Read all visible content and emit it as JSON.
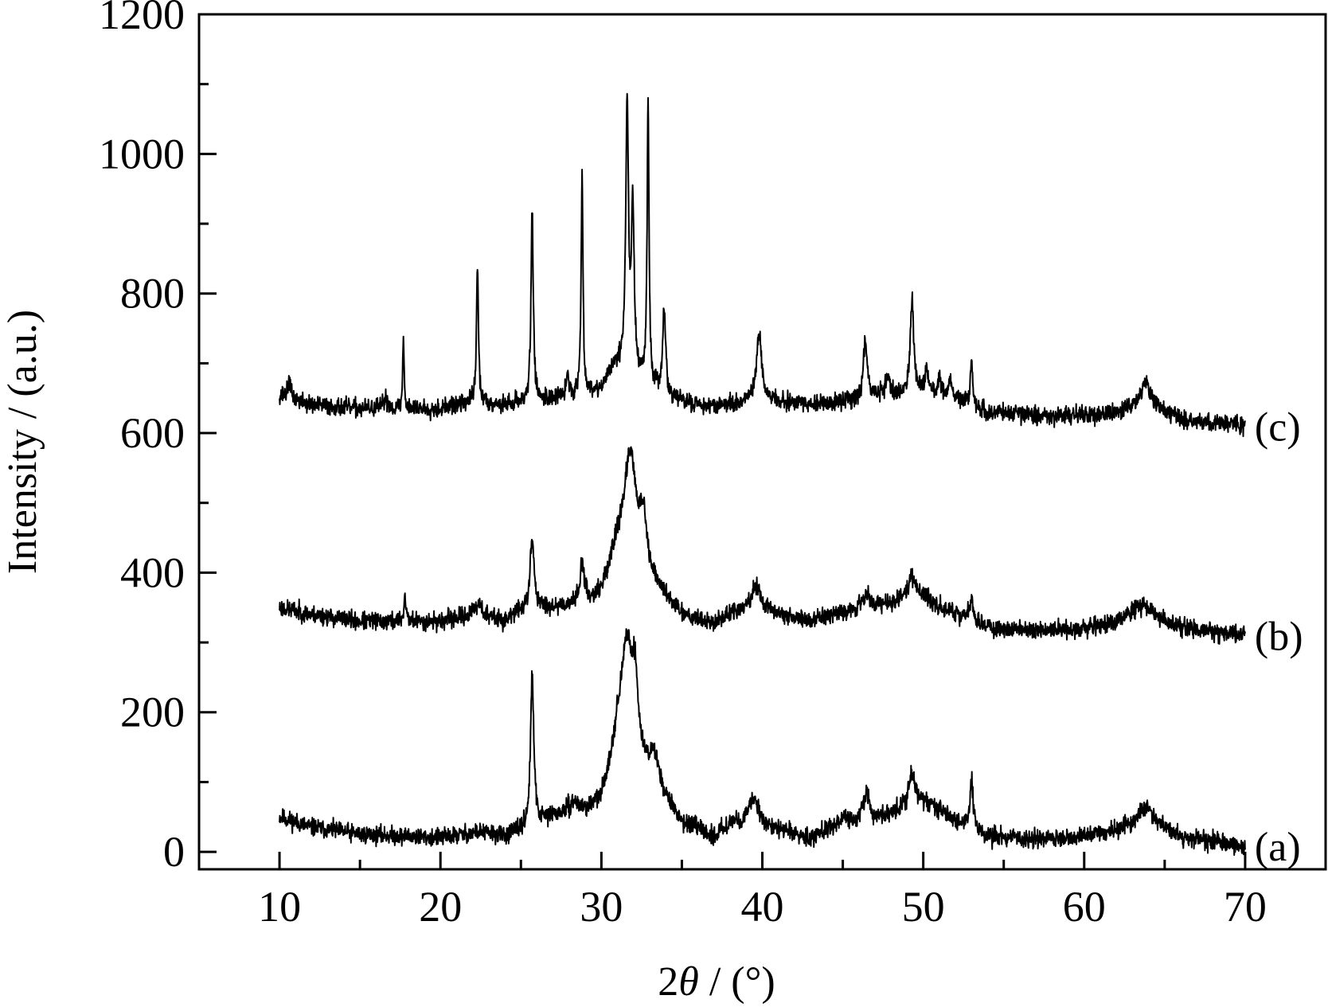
{
  "chart_data": {
    "type": "line",
    "xlabel_prefix": "2",
    "xlabel_symbol": "θ",
    "xlabel_suffix": " / (°)",
    "ylabel": "Intensity / (a.u.)",
    "xlim": [
      5,
      75
    ],
    "ylim": [
      -25,
      1200
    ],
    "x_ticks": [
      10,
      20,
      30,
      40,
      50,
      60,
      70
    ],
    "y_ticks": [
      0,
      200,
      400,
      600,
      800,
      1000,
      1200
    ],
    "line_color": "#000000",
    "series": [
      {
        "name": "(a)",
        "baseline": [
          [
            10,
            50
          ],
          [
            12,
            35
          ],
          [
            15,
            25
          ],
          [
            20,
            20
          ],
          [
            22.5,
            28
          ],
          [
            24,
            22
          ],
          [
            25,
            30
          ],
          [
            27,
            50
          ],
          [
            29,
            55
          ],
          [
            30,
            70
          ],
          [
            31,
            150
          ],
          [
            35,
            40
          ],
          [
            37,
            20
          ],
          [
            38,
            40
          ],
          [
            41,
            30
          ],
          [
            43,
            20
          ],
          [
            45,
            45
          ],
          [
            47,
            45
          ],
          [
            48,
            55
          ],
          [
            50,
            70
          ],
          [
            51,
            60
          ],
          [
            52,
            45
          ],
          [
            54,
            22
          ],
          [
            57,
            18
          ],
          [
            60,
            22
          ],
          [
            62,
            30
          ],
          [
            64,
            45
          ],
          [
            66,
            22
          ],
          [
            70,
            8
          ]
        ],
        "peaks": [
          [
            25.7,
            215,
            0.12
          ],
          [
            28.3,
            15,
            0.4
          ],
          [
            31.6,
            165,
            0.45
          ],
          [
            32.1,
            90,
            0.2
          ],
          [
            33.3,
            45,
            0.4
          ],
          [
            39.5,
            40,
            0.4
          ],
          [
            46.5,
            45,
            0.18
          ],
          [
            49.3,
            45,
            0.25
          ],
          [
            53.0,
            70,
            0.12
          ],
          [
            63.8,
            20,
            0.5
          ]
        ],
        "noise": 8,
        "seed": 11
      },
      {
        "name": "(b)",
        "baseline": [
          [
            10,
            350
          ],
          [
            12,
            340
          ],
          [
            15,
            330
          ],
          [
            20,
            330
          ],
          [
            22,
            340
          ],
          [
            24,
            330
          ],
          [
            25,
            345
          ],
          [
            27,
            350
          ],
          [
            29,
            355
          ],
          [
            30,
            370
          ],
          [
            31,
            430
          ],
          [
            35,
            340
          ],
          [
            37,
            325
          ],
          [
            38,
            340
          ],
          [
            41,
            340
          ],
          [
            43,
            330
          ],
          [
            45,
            345
          ],
          [
            47,
            350
          ],
          [
            48,
            355
          ],
          [
            50,
            365
          ],
          [
            51,
            350
          ],
          [
            52,
            340
          ],
          [
            54,
            320
          ],
          [
            57,
            318
          ],
          [
            60,
            320
          ],
          [
            62,
            330
          ],
          [
            64,
            340
          ],
          [
            66,
            322
          ],
          [
            70,
            310
          ]
        ],
        "peaks": [
          [
            17.8,
            35,
            0.08
          ],
          [
            22.4,
            20,
            0.2
          ],
          [
            25.7,
            100,
            0.15
          ],
          [
            28.8,
            60,
            0.15
          ],
          [
            31.8,
            160,
            0.45
          ],
          [
            32.6,
            70,
            0.25
          ],
          [
            39.6,
            40,
            0.4
          ],
          [
            46.5,
            20,
            0.3
          ],
          [
            49.3,
            35,
            0.3
          ],
          [
            53.0,
            30,
            0.15
          ],
          [
            63.5,
            15,
            0.5
          ]
        ],
        "noise": 8,
        "seed": 23
      },
      {
        "name": "(c)",
        "baseline": [
          [
            10,
            655
          ],
          [
            12,
            640
          ],
          [
            15,
            635
          ],
          [
            20,
            635
          ],
          [
            22,
            645
          ],
          [
            24,
            640
          ],
          [
            25,
            645
          ],
          [
            27,
            650
          ],
          [
            29,
            655
          ],
          [
            30,
            665
          ],
          [
            31,
            700
          ],
          [
            34,
            650
          ],
          [
            36,
            640
          ],
          [
            38,
            640
          ],
          [
            41,
            645
          ],
          [
            43,
            640
          ],
          [
            45,
            645
          ],
          [
            47,
            650
          ],
          [
            48,
            650
          ],
          [
            50,
            660
          ],
          [
            52,
            650
          ],
          [
            54,
            630
          ],
          [
            57,
            625
          ],
          [
            60,
            625
          ],
          [
            62,
            630
          ],
          [
            64,
            645
          ],
          [
            66,
            620
          ],
          [
            70,
            610
          ]
        ],
        "peaks": [
          [
            10.6,
            25,
            0.1
          ],
          [
            16.6,
            15,
            0.15
          ],
          [
            17.7,
            105,
            0.05
          ],
          [
            22.3,
            200,
            0.07
          ],
          [
            25.7,
            280,
            0.08
          ],
          [
            27.9,
            30,
            0.1
          ],
          [
            28.8,
            320,
            0.07
          ],
          [
            31.6,
            380,
            0.1
          ],
          [
            31.95,
            235,
            0.1
          ],
          [
            32.9,
            405,
            0.07
          ],
          [
            33.9,
            120,
            0.12
          ],
          [
            39.8,
            100,
            0.2
          ],
          [
            46.4,
            85,
            0.15
          ],
          [
            47.8,
            30,
            0.2
          ],
          [
            49.3,
            135,
            0.13
          ],
          [
            50.2,
            35,
            0.1
          ],
          [
            51.0,
            25,
            0.1
          ],
          [
            51.7,
            25,
            0.1
          ],
          [
            53.0,
            70,
            0.08
          ],
          [
            63.8,
            30,
            0.3
          ]
        ],
        "noise": 8,
        "seed": 37
      }
    ]
  }
}
